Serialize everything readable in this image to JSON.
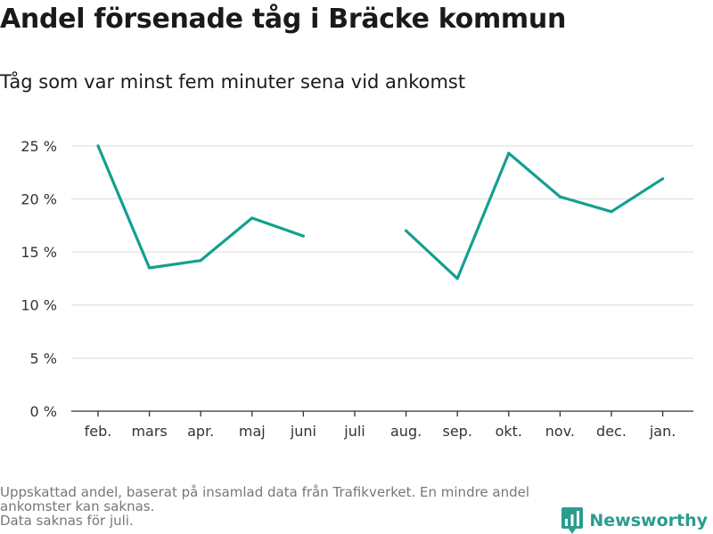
{
  "title": "Andel försenade tåg i Bräcke kommun",
  "subtitle": "Tåg som var minst fem minuter sena vid ankomst",
  "notes": [
    "Uppskattad andel, baserat på insamlad data från Trafikverket. En mindre andel",
    "ankomster kan saknas.",
    "Data saknas för juli."
  ],
  "brand": {
    "name": "Newsworthy",
    "icon": "newsworthy-logo-icon",
    "color": "#2a9d8f"
  },
  "chart_data": {
    "type": "line",
    "title": "Andel försenade tåg i Bräcke kommun",
    "subtitle": "Tåg som var minst fem minuter sena vid ankomst",
    "categories": [
      "feb.",
      "mars",
      "apr.",
      "maj",
      "juni",
      "juli",
      "aug.",
      "sep.",
      "okt.",
      "nov.",
      "dec.",
      "jan."
    ],
    "series": [
      {
        "values": [
          25.0,
          13.5,
          14.2,
          18.2,
          16.5,
          null,
          17.0,
          12.5,
          24.3,
          20.2,
          18.8,
          21.9
        ],
        "color": "#13a08f"
      }
    ],
    "yticks": [
      0,
      5,
      10,
      15,
      20,
      25
    ],
    "ytick_labels": [
      "0 %",
      "5 %",
      "10 %",
      "15 %",
      "20 %",
      "25 %"
    ],
    "ylim": [
      0,
      27
    ],
    "grid": true,
    "legend": "none"
  }
}
